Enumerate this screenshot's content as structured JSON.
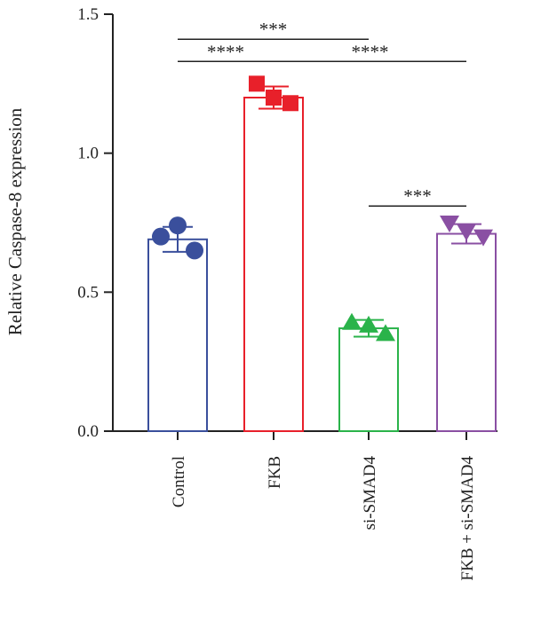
{
  "chart_data": {
    "type": "bar",
    "ylabel": "Relative Caspase-8 expression",
    "ylim": [
      0,
      1.5
    ],
    "yticks": [
      "0.0",
      "0.5",
      "1.0",
      "1.5"
    ],
    "ytick_values": [
      0,
      0.5,
      1.0,
      1.5
    ],
    "categories": [
      "Control",
      "FKB",
      "si-SMAD4",
      "FKB + si-SMAD4"
    ],
    "values": [
      0.69,
      1.2,
      0.37,
      0.71
    ],
    "errors": [
      0.045,
      0.04,
      0.03,
      0.035
    ],
    "colors": [
      "#3a4f9c",
      "#e8202a",
      "#2ab34a",
      "#8a4fa3"
    ],
    "marker_shapes": [
      "circle",
      "square",
      "triangle-up",
      "triangle-down"
    ],
    "points": [
      [
        0.7,
        0.74,
        0.65
      ],
      [
        1.25,
        1.2,
        1.18
      ],
      [
        0.39,
        0.38,
        0.35
      ],
      [
        0.75,
        0.72,
        0.7
      ]
    ],
    "significance": [
      {
        "from": 0,
        "to": 2,
        "label": "***",
        "y": 1.41
      },
      {
        "from": 0,
        "to": 1,
        "label": "****",
        "y": 1.33
      },
      {
        "from": 1,
        "to": 3,
        "label": "****",
        "y": 1.33
      },
      {
        "from": 2,
        "to": 3,
        "label": "***",
        "y": 0.81
      }
    ],
    "grid": false,
    "legend": "none"
  }
}
